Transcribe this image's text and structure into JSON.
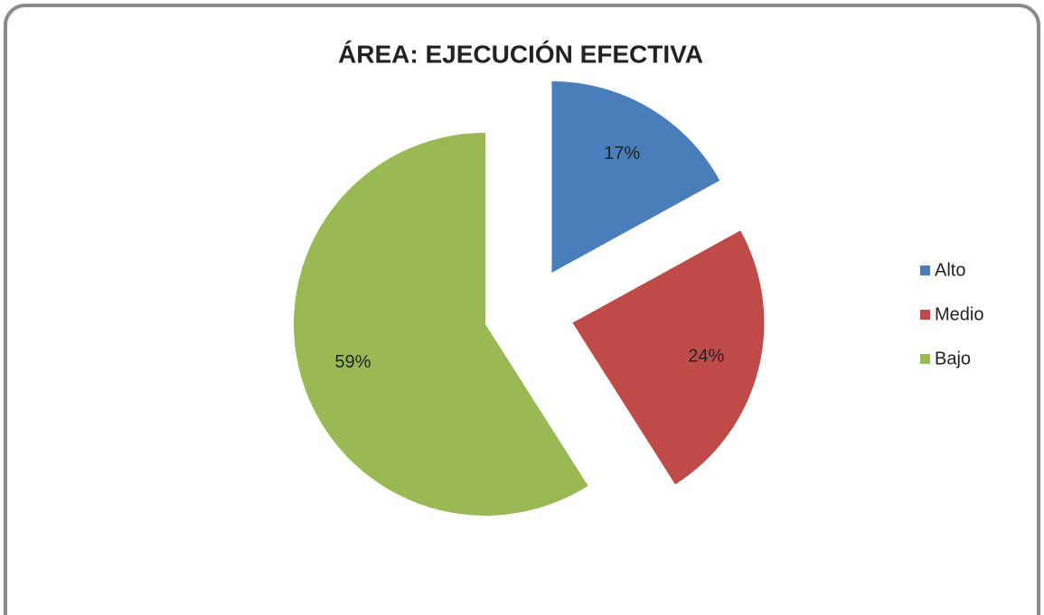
{
  "chart_data": {
    "type": "pie",
    "title": "ÁREA: EJECUCIÓN EFECTIVA",
    "categories": [
      "Alto",
      "Medio",
      "Bajo"
    ],
    "values": [
      17,
      24,
      59
    ],
    "value_labels": [
      "17%",
      "24%",
      "59%"
    ],
    "colors": [
      "#4a7ebb",
      "#be4b48",
      "#98b954"
    ],
    "legend": "right"
  }
}
